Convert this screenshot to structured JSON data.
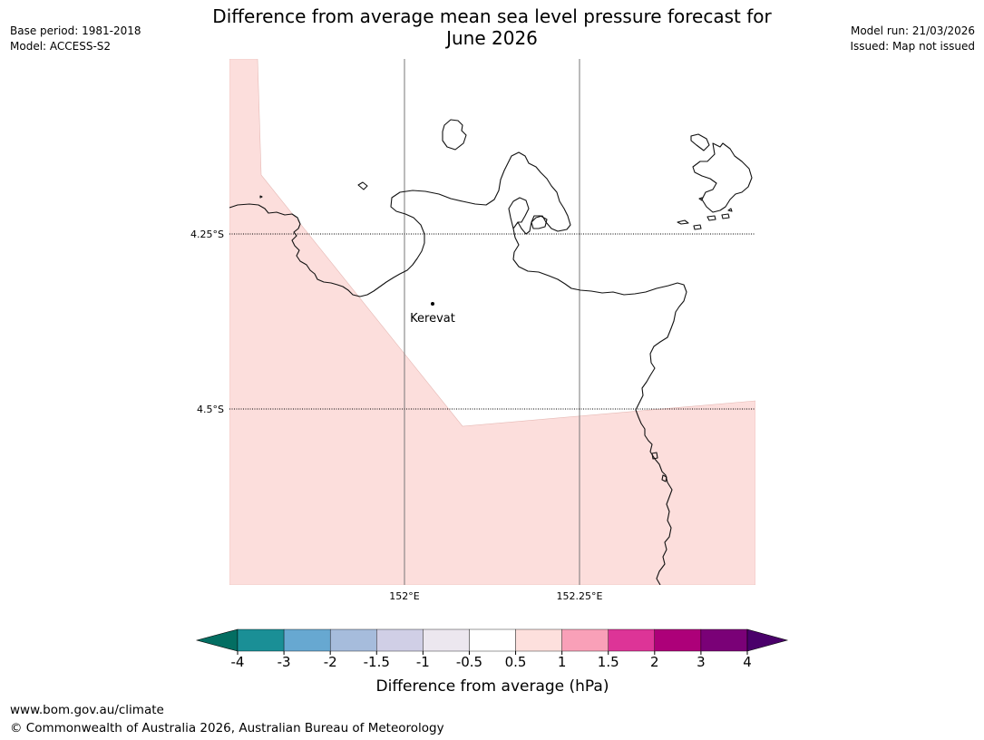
{
  "title": {
    "line1": "Difference from average mean sea level pressure forecast for",
    "line2": "June 2026"
  },
  "meta_left": {
    "base_period": "Base period: 1981-2018",
    "model": "Model: ACCESS-S2"
  },
  "meta_right": {
    "model_run": "Model run: 21/03/2026",
    "issued": "Issued: Map not issued"
  },
  "map": {
    "lat_labels": [
      "4.25°S",
      "4.5°S"
    ],
    "lon_labels": [
      "152°E",
      "152.25°E"
    ],
    "places": [
      {
        "name": "Kerevat"
      }
    ],
    "shaded_category": "0.5 to 1 hPa",
    "shading_color": "#fcdedc",
    "land_outline_color": "#000000",
    "gridline_color": "#777777"
  },
  "colorbar": {
    "label": "Difference from average (hPa)",
    "ticks": [
      "-4",
      "-3",
      "-2",
      "-1.5",
      "-1",
      "-0.5",
      "0.5",
      "1",
      "1.5",
      "2",
      "3",
      "4"
    ],
    "colors": [
      "#1a8f96",
      "#67a8d1",
      "#a6bcdc",
      "#d0cfe6",
      "#ece7ef",
      "#ffffff",
      "#fde0dd",
      "#f9a0b8",
      "#dd3497",
      "#ad0079",
      "#7a0177"
    ],
    "under_color": "#036e62",
    "over_color": "#4a006a"
  },
  "footer": {
    "url": "www.bom.gov.au/climate",
    "copyright": "© Commonwealth of Australia 2026, Australian Bureau of Meteorology"
  }
}
